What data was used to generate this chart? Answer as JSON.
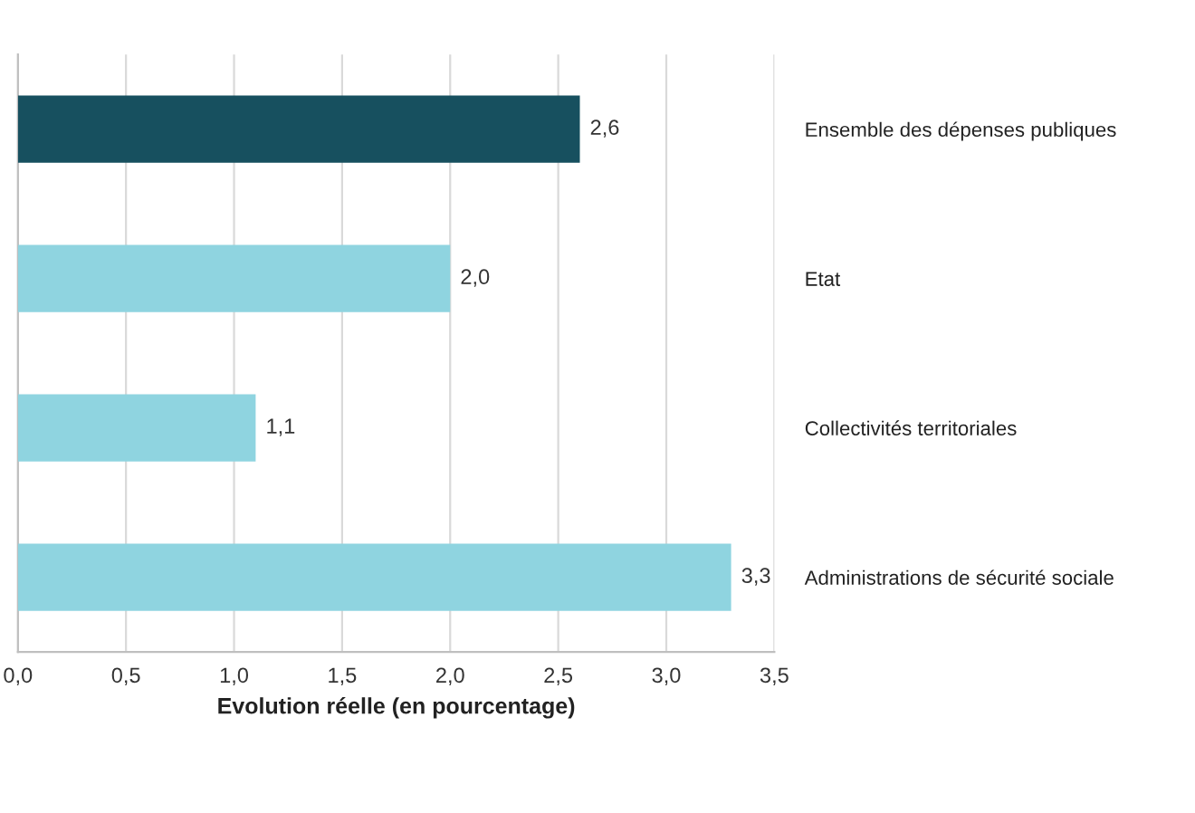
{
  "chart_data": {
    "type": "bar",
    "orientation": "horizontal",
    "xlabel": "Evolution réelle (en pourcentage)",
    "categories": [
      "Ensemble des dépenses publiques",
      "Etat",
      "Collectivités territoriales",
      "Administrations de sécurité sociale"
    ],
    "values": [
      2.6,
      2.0,
      1.1,
      3.3
    ],
    "colors": [
      "#17505f",
      "#8fd4e0",
      "#8fd4e0",
      "#8fd4e0"
    ],
    "value_labels": [
      "2,6",
      "2,0",
      "1,1",
      "3,3"
    ],
    "xlim": [
      0,
      3.5
    ],
    "xticks": [
      {
        "value": 0,
        "label": "0,0"
      },
      {
        "value": 0.5,
        "label": "0,5"
      },
      {
        "value": 1,
        "label": "1,0"
      },
      {
        "value": 1.5,
        "label": "1,5"
      },
      {
        "value": 2,
        "label": "2,0"
      },
      {
        "value": 2.5,
        "label": "2,5"
      },
      {
        "value": 3,
        "label": "3,0"
      },
      {
        "value": 3.5,
        "label": "3,5"
      }
    ],
    "grid": "x"
  }
}
